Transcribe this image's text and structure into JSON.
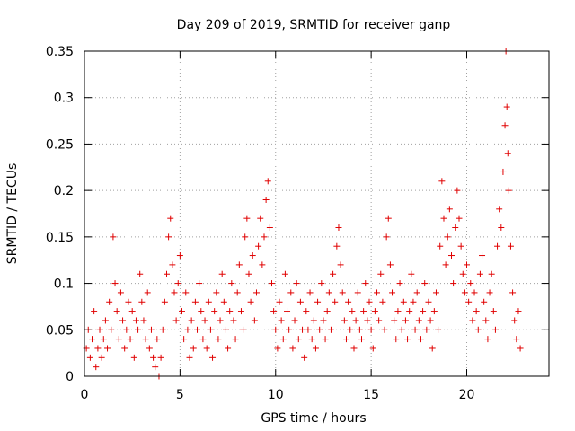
{
  "chart_data": {
    "type": "scatter",
    "title": "Day 209 of 2019, SRMTID for receiver ganp",
    "xlabel": "GPS time / hours",
    "ylabel": "SRMTID / TECUs",
    "xlim": [
      0,
      24.3
    ],
    "ylim": [
      0,
      0.35
    ],
    "xticks": [
      0,
      5,
      10,
      15,
      20
    ],
    "xtick_labels": [
      "0",
      "5",
      "10",
      "15",
      "20"
    ],
    "yticks": [
      0,
      0.05,
      0.1,
      0.15,
      0.2,
      0.25,
      0.3,
      0.35
    ],
    "ytick_labels": [
      "0",
      "0.05",
      "0.1",
      "0.15",
      "0.2",
      "0.25",
      "0.3",
      "0.35"
    ],
    "grid": true,
    "marker": "+",
    "color": "#e00000",
    "series": [
      {
        "name": "SRMTID",
        "points": [
          [
            0.1,
            0.03
          ],
          [
            0.2,
            0.05
          ],
          [
            0.3,
            0.02
          ],
          [
            0.4,
            0.04
          ],
          [
            0.5,
            0.07
          ],
          [
            0.6,
            0.01
          ],
          [
            0.7,
            0.03
          ],
          [
            0.8,
            0.05
          ],
          [
            0.9,
            0.02
          ],
          [
            1.0,
            0.04
          ],
          [
            1.1,
            0.06
          ],
          [
            1.2,
            0.03
          ],
          [
            1.3,
            0.08
          ],
          [
            1.4,
            0.05
          ],
          [
            1.5,
            0.15
          ],
          [
            1.6,
            0.1
          ],
          [
            1.7,
            0.07
          ],
          [
            1.8,
            0.04
          ],
          [
            1.9,
            0.09
          ],
          [
            2.0,
            0.06
          ],
          [
            2.1,
            0.03
          ],
          [
            2.2,
            0.05
          ],
          [
            2.3,
            0.08
          ],
          [
            2.4,
            0.04
          ],
          [
            2.5,
            0.07
          ],
          [
            2.6,
            0.02
          ],
          [
            2.7,
            0.06
          ],
          [
            2.8,
            0.05
          ],
          [
            2.9,
            0.11
          ],
          [
            3.0,
            0.08
          ],
          [
            3.1,
            0.06
          ],
          [
            3.2,
            0.04
          ],
          [
            3.3,
            0.09
          ],
          [
            3.4,
            0.03
          ],
          [
            3.5,
            0.05
          ],
          [
            3.6,
            0.02
          ],
          [
            3.7,
            0.01
          ],
          [
            3.8,
            0.04
          ],
          [
            3.9,
            0.0
          ],
          [
            4.0,
            0.02
          ],
          [
            4.1,
            0.05
          ],
          [
            4.2,
            0.08
          ],
          [
            4.3,
            0.11
          ],
          [
            4.4,
            0.15
          ],
          [
            4.5,
            0.17
          ],
          [
            4.6,
            0.12
          ],
          [
            4.7,
            0.09
          ],
          [
            4.8,
            0.06
          ],
          [
            4.9,
            0.1
          ],
          [
            5.0,
            0.13
          ],
          [
            5.1,
            0.07
          ],
          [
            5.2,
            0.04
          ],
          [
            5.3,
            0.09
          ],
          [
            5.4,
            0.05
          ],
          [
            5.5,
            0.02
          ],
          [
            5.6,
            0.06
          ],
          [
            5.7,
            0.03
          ],
          [
            5.8,
            0.08
          ],
          [
            5.9,
            0.05
          ],
          [
            6.0,
            0.1
          ],
          [
            6.1,
            0.07
          ],
          [
            6.2,
            0.04
          ],
          [
            6.3,
            0.06
          ],
          [
            6.4,
            0.03
          ],
          [
            6.5,
            0.08
          ],
          [
            6.6,
            0.05
          ],
          [
            6.7,
            0.02
          ],
          [
            6.8,
            0.07
          ],
          [
            6.9,
            0.09
          ],
          [
            7.0,
            0.04
          ],
          [
            7.1,
            0.06
          ],
          [
            7.2,
            0.11
          ],
          [
            7.3,
            0.08
          ],
          [
            7.4,
            0.05
          ],
          [
            7.5,
            0.03
          ],
          [
            7.6,
            0.07
          ],
          [
            7.7,
            0.1
          ],
          [
            7.8,
            0.06
          ],
          [
            7.9,
            0.04
          ],
          [
            8.0,
            0.09
          ],
          [
            8.1,
            0.12
          ],
          [
            8.2,
            0.07
          ],
          [
            8.3,
            0.05
          ],
          [
            8.4,
            0.15
          ],
          [
            8.5,
            0.17
          ],
          [
            8.6,
            0.11
          ],
          [
            8.7,
            0.08
          ],
          [
            8.8,
            0.13
          ],
          [
            8.9,
            0.06
          ],
          [
            9.0,
            0.09
          ],
          [
            9.1,
            0.14
          ],
          [
            9.2,
            0.17
          ],
          [
            9.3,
            0.12
          ],
          [
            9.4,
            0.15
          ],
          [
            9.5,
            0.19
          ],
          [
            9.6,
            0.21
          ],
          [
            9.7,
            0.16
          ],
          [
            9.8,
            0.1
          ],
          [
            9.9,
            0.07
          ],
          [
            10.0,
            0.05
          ],
          [
            10.1,
            0.03
          ],
          [
            10.2,
            0.08
          ],
          [
            10.3,
            0.06
          ],
          [
            10.4,
            0.04
          ],
          [
            10.5,
            0.11
          ],
          [
            10.6,
            0.07
          ],
          [
            10.7,
            0.05
          ],
          [
            10.8,
            0.09
          ],
          [
            10.9,
            0.03
          ],
          [
            11.0,
            0.06
          ],
          [
            11.1,
            0.1
          ],
          [
            11.2,
            0.04
          ],
          [
            11.3,
            0.08
          ],
          [
            11.4,
            0.05
          ],
          [
            11.5,
            0.02
          ],
          [
            11.6,
            0.07
          ],
          [
            11.7,
            0.05
          ],
          [
            11.8,
            0.09
          ],
          [
            11.9,
            0.04
          ],
          [
            12.0,
            0.06
          ],
          [
            12.1,
            0.03
          ],
          [
            12.2,
            0.08
          ],
          [
            12.3,
            0.05
          ],
          [
            12.4,
            0.1
          ],
          [
            12.5,
            0.06
          ],
          [
            12.6,
            0.04
          ],
          [
            12.7,
            0.07
          ],
          [
            12.8,
            0.09
          ],
          [
            12.9,
            0.05
          ],
          [
            13.0,
            0.11
          ],
          [
            13.1,
            0.08
          ],
          [
            13.2,
            0.14
          ],
          [
            13.3,
            0.16
          ],
          [
            13.4,
            0.12
          ],
          [
            13.5,
            0.09
          ],
          [
            13.6,
            0.06
          ],
          [
            13.7,
            0.04
          ],
          [
            13.8,
            0.08
          ],
          [
            13.9,
            0.05
          ],
          [
            14.0,
            0.07
          ],
          [
            14.1,
            0.03
          ],
          [
            14.2,
            0.06
          ],
          [
            14.3,
            0.09
          ],
          [
            14.4,
            0.05
          ],
          [
            14.5,
            0.04
          ],
          [
            14.6,
            0.07
          ],
          [
            14.7,
            0.1
          ],
          [
            14.8,
            0.06
          ],
          [
            14.9,
            0.08
          ],
          [
            15.0,
            0.05
          ],
          [
            15.1,
            0.03
          ],
          [
            15.2,
            0.07
          ],
          [
            15.3,
            0.09
          ],
          [
            15.4,
            0.06
          ],
          [
            15.5,
            0.11
          ],
          [
            15.6,
            0.08
          ],
          [
            15.7,
            0.05
          ],
          [
            15.8,
            0.15
          ],
          [
            15.9,
            0.17
          ],
          [
            16.0,
            0.12
          ],
          [
            16.1,
            0.09
          ],
          [
            16.2,
            0.06
          ],
          [
            16.3,
            0.04
          ],
          [
            16.4,
            0.07
          ],
          [
            16.5,
            0.1
          ],
          [
            16.6,
            0.05
          ],
          [
            16.7,
            0.08
          ],
          [
            16.8,
            0.06
          ],
          [
            16.9,
            0.04
          ],
          [
            17.0,
            0.07
          ],
          [
            17.1,
            0.11
          ],
          [
            17.2,
            0.08
          ],
          [
            17.3,
            0.05
          ],
          [
            17.4,
            0.09
          ],
          [
            17.5,
            0.06
          ],
          [
            17.6,
            0.04
          ],
          [
            17.7,
            0.07
          ],
          [
            17.8,
            0.1
          ],
          [
            17.9,
            0.05
          ],
          [
            18.0,
            0.08
          ],
          [
            18.1,
            0.06
          ],
          [
            18.2,
            0.03
          ],
          [
            18.3,
            0.07
          ],
          [
            18.4,
            0.09
          ],
          [
            18.5,
            0.05
          ],
          [
            18.6,
            0.14
          ],
          [
            18.7,
            0.21
          ],
          [
            18.8,
            0.17
          ],
          [
            18.9,
            0.12
          ],
          [
            19.0,
            0.15
          ],
          [
            19.1,
            0.18
          ],
          [
            19.2,
            0.13
          ],
          [
            19.3,
            0.1
          ],
          [
            19.4,
            0.16
          ],
          [
            19.5,
            0.2
          ],
          [
            19.6,
            0.17
          ],
          [
            19.7,
            0.14
          ],
          [
            19.8,
            0.11
          ],
          [
            19.9,
            0.09
          ],
          [
            20.0,
            0.12
          ],
          [
            20.1,
            0.08
          ],
          [
            20.2,
            0.1
          ],
          [
            20.3,
            0.06
          ],
          [
            20.4,
            0.09
          ],
          [
            20.5,
            0.07
          ],
          [
            20.6,
            0.05
          ],
          [
            20.7,
            0.11
          ],
          [
            20.8,
            0.13
          ],
          [
            20.9,
            0.08
          ],
          [
            21.0,
            0.06
          ],
          [
            21.1,
            0.04
          ],
          [
            21.2,
            0.09
          ],
          [
            21.3,
            0.11
          ],
          [
            21.4,
            0.07
          ],
          [
            21.5,
            0.05
          ],
          [
            21.6,
            0.14
          ],
          [
            21.7,
            0.18
          ],
          [
            21.8,
            0.16
          ],
          [
            21.9,
            0.22
          ],
          [
            22.0,
            0.27
          ],
          [
            22.05,
            0.35
          ],
          [
            22.1,
            0.29
          ],
          [
            22.15,
            0.24
          ],
          [
            22.2,
            0.2
          ],
          [
            22.3,
            0.14
          ],
          [
            22.4,
            0.09
          ],
          [
            22.5,
            0.06
          ],
          [
            22.6,
            0.04
          ],
          [
            22.7,
            0.07
          ],
          [
            22.8,
            0.03
          ]
        ]
      }
    ]
  }
}
